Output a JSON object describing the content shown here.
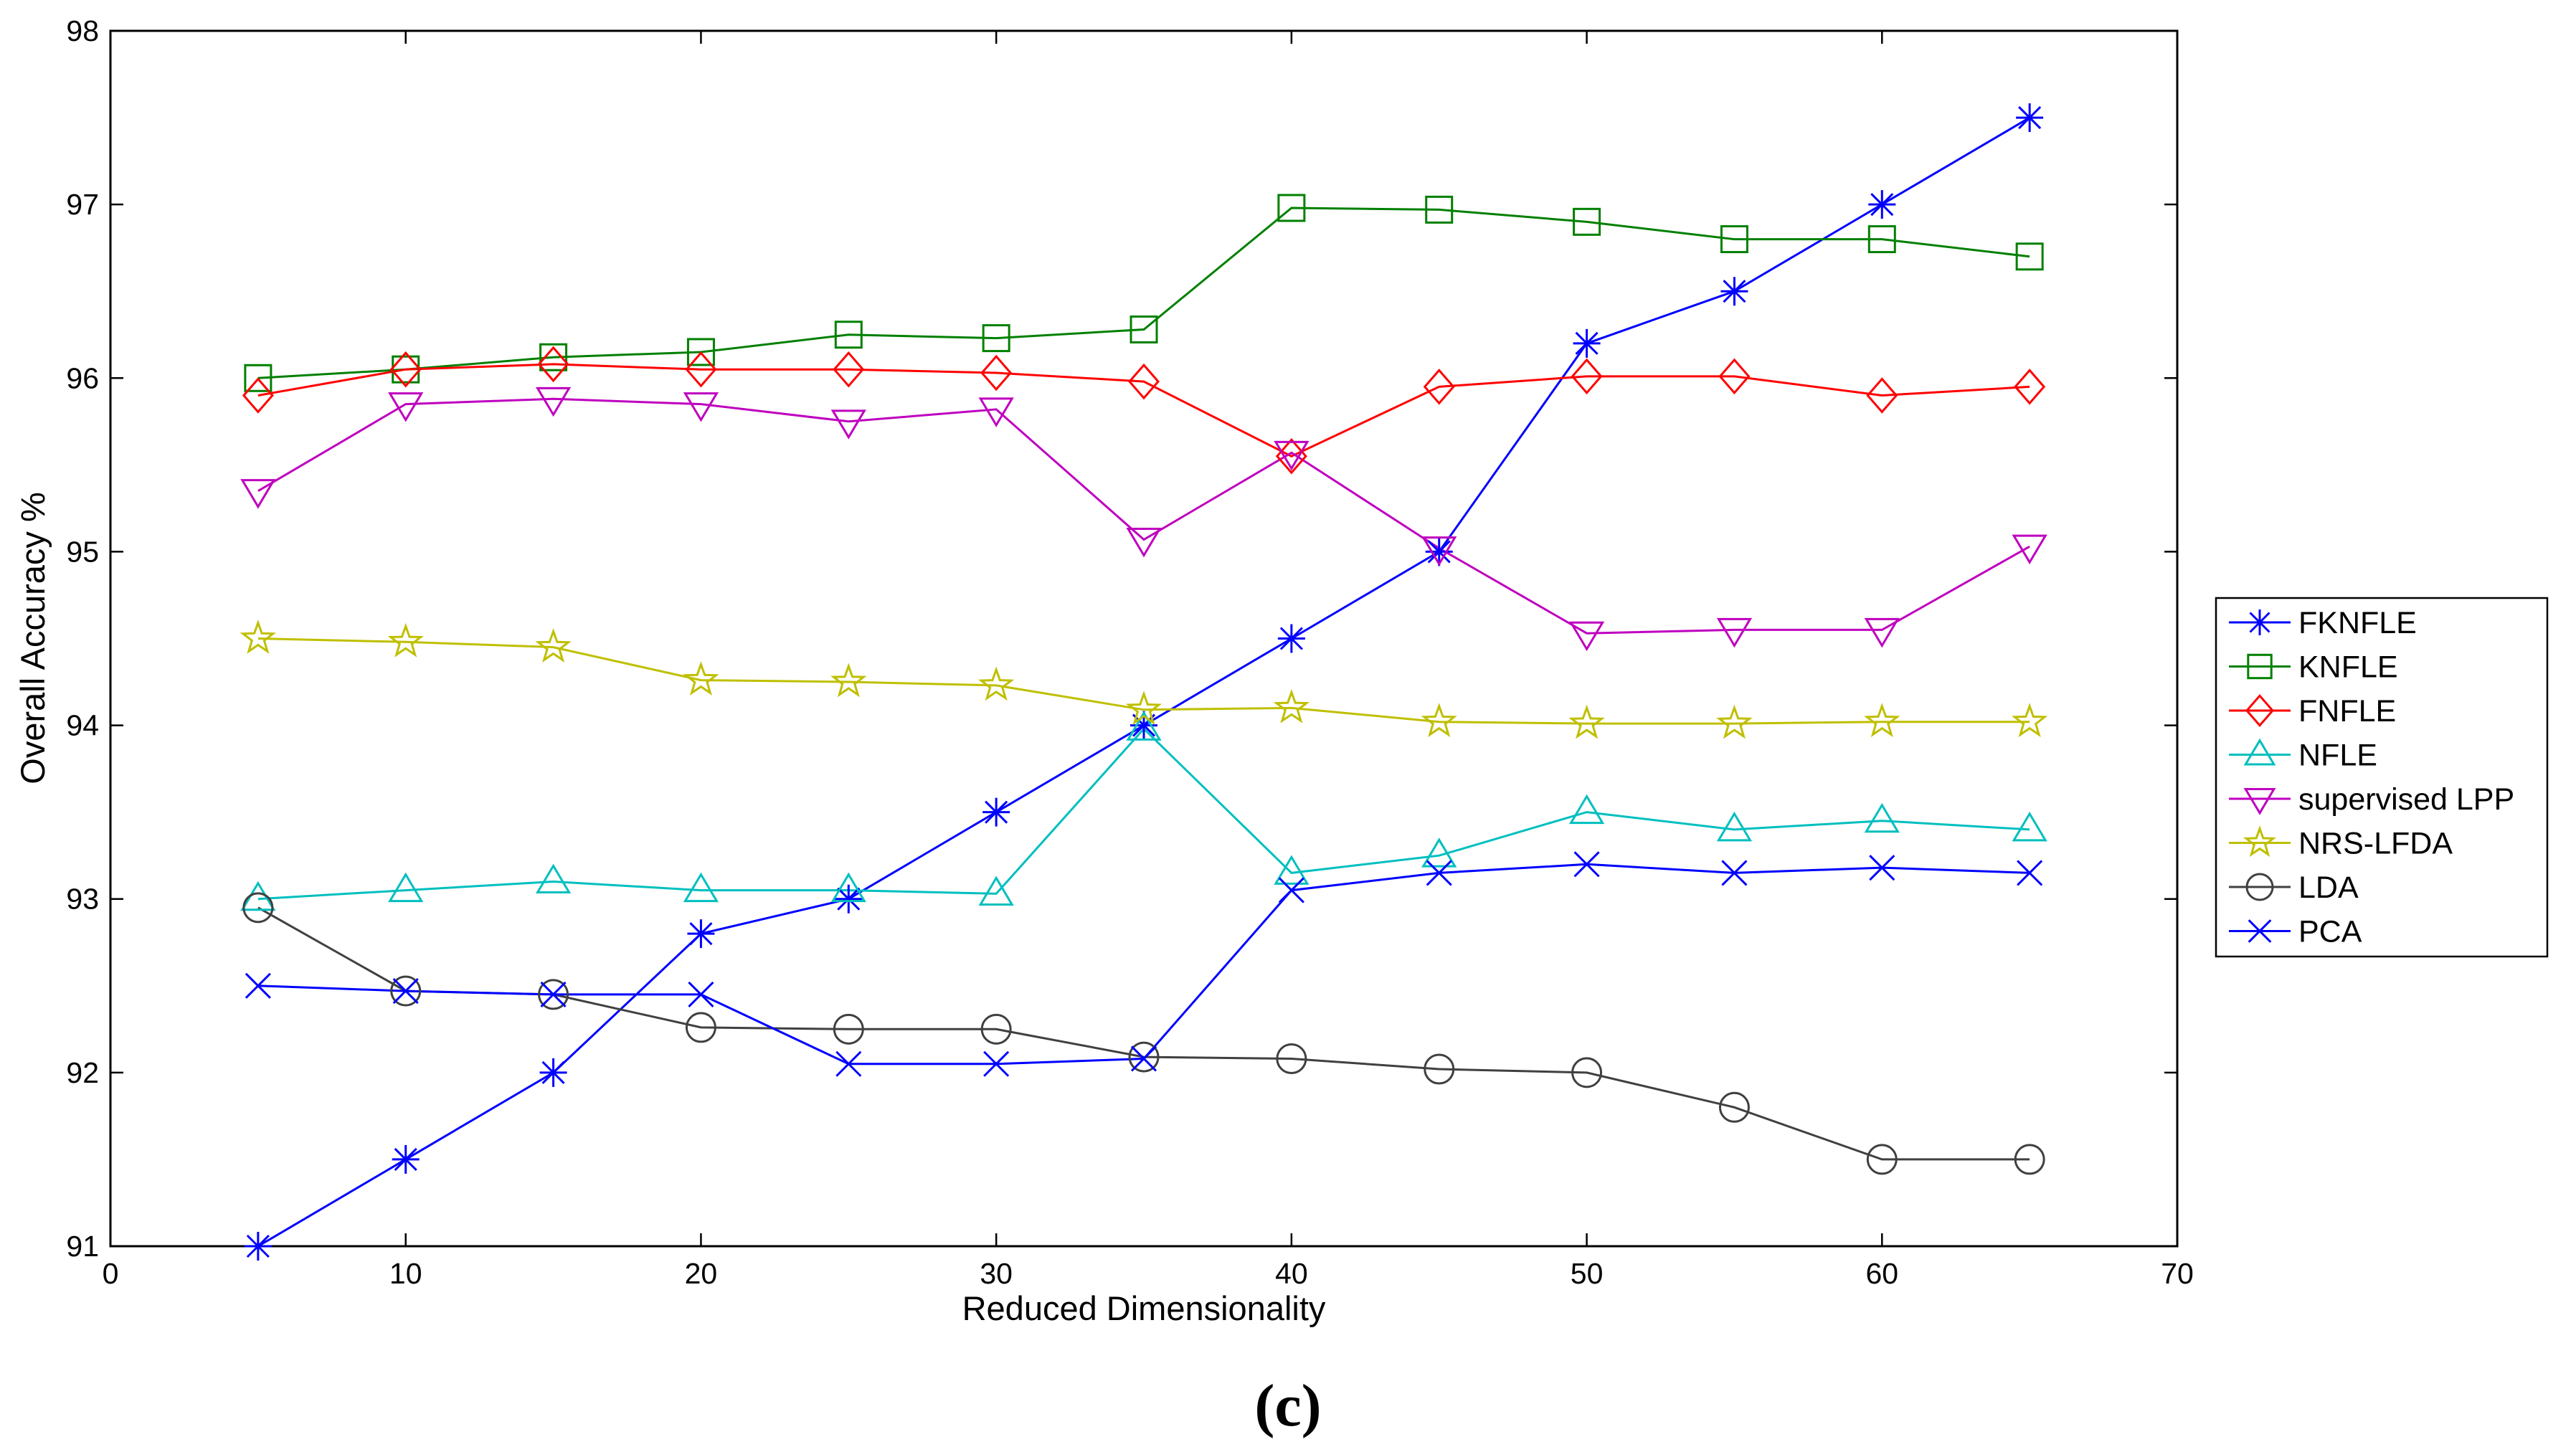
{
  "chart_data": {
    "type": "line",
    "title": "",
    "xlabel": "Reduced Dimensionality",
    "ylabel": "Overall Accuracy %",
    "caption": "(c)",
    "xlim": [
      0,
      70
    ],
    "ylim": [
      91,
      98
    ],
    "xticks": [
      0,
      10,
      20,
      30,
      40,
      50,
      60,
      70
    ],
    "yticks": [
      91,
      92,
      93,
      94,
      95,
      96,
      97,
      98
    ],
    "grid": false,
    "legend_position": "right",
    "x": [
      5,
      10,
      15,
      20,
      25,
      30,
      35,
      40,
      45,
      50,
      55,
      60,
      65
    ],
    "series": [
      {
        "name": "FKNFLE",
        "color": "#0000ff",
        "marker": "asterisk",
        "values": [
          91.0,
          91.5,
          92.0,
          92.8,
          93.0,
          93.5,
          94.0,
          94.5,
          95.0,
          96.2,
          96.5,
          97.0,
          97.5
        ]
      },
      {
        "name": "KNFLE",
        "color": "#008000",
        "marker": "square",
        "values": [
          96.0,
          96.05,
          96.12,
          96.15,
          96.25,
          96.23,
          96.28,
          96.98,
          96.97,
          96.9,
          96.8,
          96.8,
          96.7
        ]
      },
      {
        "name": "FNFLE",
        "color": "#ff0000",
        "marker": "diamond",
        "values": [
          95.9,
          96.05,
          96.08,
          96.05,
          96.05,
          96.03,
          95.98,
          95.55,
          95.95,
          96.01,
          96.01,
          95.9,
          95.95
        ]
      },
      {
        "name": "NFLE",
        "color": "#00bfbf",
        "marker": "triangle-up",
        "values": [
          93.0,
          93.05,
          93.1,
          93.05,
          93.05,
          93.03,
          93.98,
          93.15,
          93.25,
          93.5,
          93.4,
          93.45,
          93.4
        ]
      },
      {
        "name": "supervised LPP",
        "color": "#bf00bf",
        "marker": "triangle-down",
        "values": [
          95.35,
          95.85,
          95.88,
          95.85,
          95.75,
          95.82,
          95.07,
          95.57,
          95.02,
          94.53,
          94.55,
          94.55,
          95.03
        ]
      },
      {
        "name": "NRS-LFDA",
        "color": "#bfbf00",
        "marker": "star",
        "values": [
          94.5,
          94.48,
          94.45,
          94.26,
          94.25,
          94.23,
          94.09,
          94.1,
          94.02,
          94.01,
          94.01,
          94.02,
          94.02
        ]
      },
      {
        "name": "LDA",
        "color": "#404040",
        "marker": "circle",
        "values": [
          92.95,
          92.47,
          92.45,
          92.26,
          92.25,
          92.25,
          92.09,
          92.08,
          92.02,
          92.0,
          91.8,
          91.5,
          91.5
        ]
      },
      {
        "name": "PCA",
        "color": "#0000ff",
        "marker": "x",
        "values": [
          92.5,
          92.47,
          92.45,
          92.45,
          92.05,
          92.05,
          92.08,
          93.05,
          93.15,
          93.2,
          93.15,
          93.18,
          93.15
        ]
      }
    ]
  }
}
